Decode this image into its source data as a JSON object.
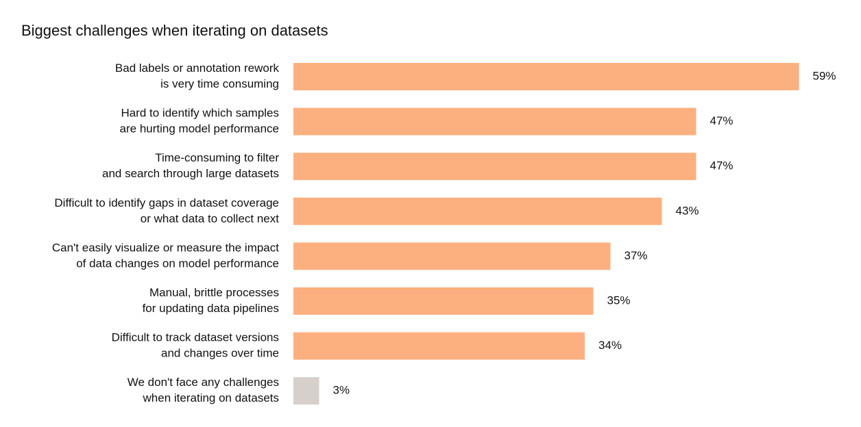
{
  "chart_data": {
    "type": "bar",
    "orientation": "horizontal",
    "title": "Biggest challenges when iterating on datasets",
    "categories": [
      [
        "Bad labels or annotation rework",
        "is very time consuming"
      ],
      [
        "Hard to identify which samples",
        "are hurting model performance"
      ],
      [
        "Time-consuming to filter",
        "and search through large datasets"
      ],
      [
        "Difficult to identify gaps in dataset coverage",
        "or what data to collect next"
      ],
      [
        "Can't easily visualize or measure the impact",
        "of data changes on model performance"
      ],
      [
        "Manual, brittle processes",
        "for updating data pipelines"
      ],
      [
        "Difficult to track dataset versions",
        "and changes over time"
      ],
      [
        "We don't face any challenges",
        "when iterating on datasets"
      ]
    ],
    "values": [
      59,
      47,
      47,
      43,
      37,
      35,
      34,
      3
    ],
    "value_labels": [
      "59%",
      "47%",
      "47%",
      "43%",
      "37%",
      "35%",
      "34%",
      "3%"
    ],
    "colors": [
      "#fdb07f",
      "#fdb07f",
      "#fdb07f",
      "#fdb07f",
      "#fdb07f",
      "#fdb07f",
      "#fdb07f",
      "#d6cfca"
    ]
  }
}
